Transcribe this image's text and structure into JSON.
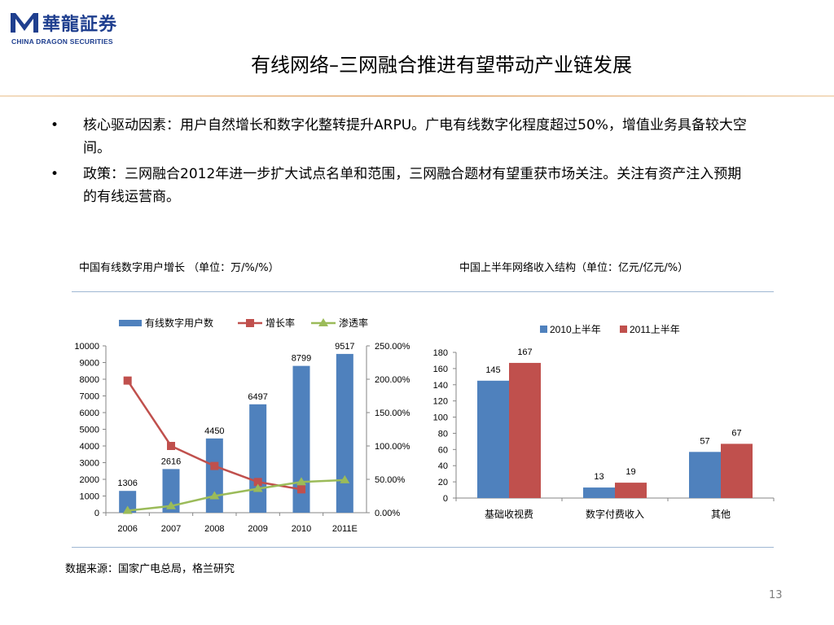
{
  "logo": {
    "name_cn": "華龍証券",
    "name_en": "CHINA DRAGON SECURITIES"
  },
  "slide": {
    "title": "有线网络–三网融合推进有望带动产业链发展",
    "bullets": [
      "核心驱动因素：用户自然增长和数字化整转提升ARPU。广电有线数字化程度超过50%，增值业务具备较大空间。",
      "政策：三网融合2012年进一步扩大试点名单和范围，三网融合题材有望重获市场关注。关注有资产注入预期的有线运营商。"
    ],
    "bullet_symbol": "•",
    "source": "数据来源：国家广电总局，格兰研究",
    "page_number": "13"
  },
  "colors": {
    "brand": "#1f3f8f",
    "bar_blue": "#4f81bd",
    "bar_red": "#c0504d",
    "line_green": "#9bbb59",
    "rule_blue": "#9fb7d3"
  },
  "chart_data": [
    {
      "type": "bar",
      "title": "中国有线数字用户增长  （单位：万/%/%）",
      "categories": [
        "2006",
        "2007",
        "2008",
        "2009",
        "2010",
        "2011E"
      ],
      "series": [
        {
          "name": "有线数字用户数",
          "type": "bar",
          "axis": "left",
          "values": [
            1306,
            2616,
            4450,
            6497,
            8799,
            9517
          ],
          "color": "#4f81bd"
        },
        {
          "name": "增长率",
          "type": "line",
          "axis": "right",
          "values": [
            198,
            100,
            70,
            46,
            35,
            null
          ],
          "color": "#c0504d"
        },
        {
          "name": "渗透率",
          "type": "line",
          "axis": "right",
          "values": [
            3,
            10,
            25,
            36,
            46,
            49
          ],
          "color": "#9bbb59"
        }
      ],
      "data_labels": [
        "1306",
        "2616",
        "4450",
        "6497",
        "8799",
        "9517"
      ],
      "ylim_left": [
        0,
        10000
      ],
      "yticks_left": [
        "0",
        "1000",
        "2000",
        "3000",
        "4000",
        "5000",
        "6000",
        "7000",
        "8000",
        "9000",
        "10000"
      ],
      "ylim_right": [
        0,
        250
      ],
      "yticks_right": [
        "0.00%",
        "50.00%",
        "100.00%",
        "150.00%",
        "200.00%",
        "250.00%"
      ],
      "legend": "top",
      "grid": false
    },
    {
      "type": "bar",
      "title": "中国上半年网络收入结构（单位：亿元/亿元/%）",
      "categories": [
        "基础收视费",
        "数字付费收入",
        "其他"
      ],
      "series": [
        {
          "name": "2010上半年",
          "values": [
            145,
            13,
            57
          ],
          "color": "#4f81bd"
        },
        {
          "name": "2011上半年",
          "values": [
            167,
            19,
            67
          ],
          "color": "#c0504d"
        }
      ],
      "data_labels": [
        [
          "145",
          "13",
          "57"
        ],
        [
          "167",
          "19",
          "67"
        ]
      ],
      "ylim": [
        0,
        180
      ],
      "yticks": [
        "0",
        "20",
        "40",
        "60",
        "80",
        "100",
        "120",
        "140",
        "160",
        "180"
      ],
      "legend": "top",
      "grid": false
    }
  ]
}
